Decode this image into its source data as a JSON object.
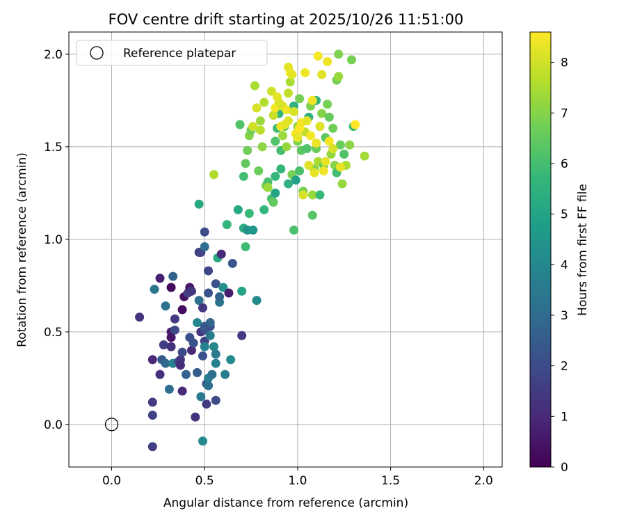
{
  "chart_data": {
    "type": "scatter",
    "title": "FOV centre drift starting at 2025/10/26 11:51:00",
    "xlabel": "Angular distance from reference (arcmin)",
    "ylabel": "Rotation from reference (arcmin)",
    "xlim": [
      -0.23,
      2.1
    ],
    "ylim": [
      -0.23,
      2.12
    ],
    "xticks": [
      0.0,
      0.5,
      1.0,
      1.5,
      2.0
    ],
    "yticks": [
      0.0,
      0.5,
      1.0,
      1.5,
      2.0
    ],
    "grid": true,
    "legend": {
      "location": "top-left",
      "entries": [
        "Reference platepar"
      ]
    },
    "reference_point": {
      "x": 0.0,
      "y": 0.0,
      "label": "Reference platepar",
      "marker": "open-circle"
    },
    "colorbar": {
      "label": "Hours from first FF file",
      "min": 0,
      "max": 8.6,
      "ticks": [
        0,
        1,
        2,
        3,
        4,
        5,
        6,
        7,
        8
      ],
      "colormap": "viridis",
      "colormap_stops": [
        "#440154",
        "#482878",
        "#3e4989",
        "#31688e",
        "#26828e",
        "#1f9e89",
        "#35b779",
        "#6ece58",
        "#b5de2b",
        "#fde725"
      ]
    },
    "points": [
      [
        0.22,
        -0.12,
        1.6
      ],
      [
        0.22,
        0.05,
        1.7
      ],
      [
        0.22,
        0.12,
        1.5
      ],
      [
        0.15,
        0.58,
        1.3
      ],
      [
        0.22,
        0.35,
        1.0
      ],
      [
        0.26,
        0.27,
        1.2
      ],
      [
        0.28,
        0.43,
        1.6
      ],
      [
        0.27,
        0.35,
        2.4
      ],
      [
        0.29,
        0.33,
        2.9
      ],
      [
        0.31,
        0.19,
        3.1
      ],
      [
        0.26,
        0.79,
        0.8
      ],
      [
        0.23,
        0.73,
        3.4
      ],
      [
        0.29,
        0.64,
        3.2
      ],
      [
        0.32,
        0.74,
        0.3
      ],
      [
        0.33,
        0.8,
        2.7
      ],
      [
        0.32,
        0.5,
        0.7
      ],
      [
        0.32,
        0.47,
        0.5
      ],
      [
        0.32,
        0.42,
        1.2
      ],
      [
        0.33,
        0.33,
        3.8
      ],
      [
        0.34,
        0.57,
        1.5
      ],
      [
        0.34,
        0.51,
        1.9
      ],
      [
        0.36,
        0.34,
        2.0
      ],
      [
        0.37,
        0.35,
        1.4
      ],
      [
        0.37,
        0.32,
        1.1
      ],
      [
        0.38,
        0.62,
        0.3
      ],
      [
        0.38,
        0.18,
        1.0
      ],
      [
        0.38,
        0.39,
        1.9
      ],
      [
        0.39,
        0.69,
        0.4
      ],
      [
        0.4,
        0.27,
        2.7
      ],
      [
        0.41,
        0.71,
        1.7
      ],
      [
        0.42,
        0.74,
        0.6
      ],
      [
        0.43,
        0.72,
        1.4
      ],
      [
        0.42,
        0.47,
        2.1
      ],
      [
        0.43,
        0.4,
        1.0
      ],
      [
        0.44,
        0.44,
        2.2
      ],
      [
        0.45,
        0.04,
        1.3
      ],
      [
        0.46,
        0.55,
        4.0
      ],
      [
        0.46,
        0.28,
        2.5
      ],
      [
        0.47,
        0.67,
        3.2
      ],
      [
        0.47,
        1.19,
        5.2
      ],
      [
        0.47,
        0.93,
        1.5
      ],
      [
        0.48,
        0.93,
        1.8
      ],
      [
        0.48,
        0.5,
        1.3
      ],
      [
        0.48,
        0.15,
        3.5
      ],
      [
        0.49,
        0.37,
        2.2
      ],
      [
        0.49,
        0.63,
        1.4
      ],
      [
        0.49,
        -0.09,
        4.1
      ],
      [
        0.5,
        0.51,
        2.1
      ],
      [
        0.5,
        1.04,
        2.0
      ],
      [
        0.5,
        0.96,
        3.0
      ],
      [
        0.5,
        0.45,
        1.7
      ],
      [
        0.5,
        0.53,
        2.4
      ],
      [
        0.5,
        0.42,
        3.8
      ],
      [
        0.51,
        0.22,
        2.4
      ],
      [
        0.51,
        0.11,
        1.5
      ],
      [
        0.52,
        0.83,
        1.8
      ],
      [
        0.52,
        0.25,
        3.7
      ],
      [
        0.52,
        0.71,
        2.2
      ],
      [
        0.52,
        0.21,
        3.1
      ],
      [
        0.53,
        0.53,
        2.1
      ],
      [
        0.53,
        0.55,
        2.8
      ],
      [
        0.53,
        0.48,
        3.6
      ],
      [
        0.54,
        0.27,
        3.2
      ],
      [
        0.55,
        0.42,
        4.1
      ],
      [
        0.56,
        0.76,
        2.2
      ],
      [
        0.56,
        0.38,
        3.5
      ],
      [
        0.56,
        0.33,
        3.8
      ],
      [
        0.56,
        0.13,
        2.0
      ],
      [
        0.57,
        0.9,
        5.2
      ],
      [
        0.58,
        0.66,
        3.3
      ],
      [
        0.58,
        0.69,
        2.7
      ],
      [
        0.59,
        0.92,
        1.0
      ],
      [
        0.6,
        0.74,
        4.3
      ],
      [
        0.61,
        0.27,
        3.6
      ],
      [
        0.62,
        1.08,
        5.6
      ],
      [
        0.63,
        0.71,
        0.7
      ],
      [
        0.64,
        0.35,
        4.1
      ],
      [
        0.65,
        0.87,
        2.3
      ],
      [
        0.7,
        0.48,
        1.5
      ],
      [
        0.7,
        0.72,
        5.0
      ],
      [
        0.72,
        0.96,
        5.9
      ],
      [
        0.78,
        0.67,
        4.1
      ],
      [
        0.68,
        1.16,
        5.2
      ],
      [
        0.71,
        1.06,
        5.3
      ],
      [
        0.73,
        1.05,
        4.3
      ],
      [
        0.74,
        1.14,
        5.8
      ],
      [
        0.76,
        1.05,
        4.5
      ],
      [
        0.69,
        1.62,
        6.2
      ],
      [
        0.71,
        1.34,
        6.0
      ],
      [
        0.72,
        1.41,
        6.5
      ],
      [
        0.73,
        1.48,
        6.7
      ],
      [
        0.74,
        1.56,
        7.0
      ],
      [
        0.75,
        1.59,
        6.7
      ],
      [
        0.77,
        1.83,
        7.5
      ],
      [
        0.78,
        1.71,
        8.1
      ],
      [
        0.79,
        1.37,
        6.6
      ],
      [
        0.8,
        1.64,
        7.3
      ],
      [
        0.81,
        1.5,
        7.1
      ],
      [
        0.82,
        1.16,
        5.7
      ],
      [
        0.83,
        1.29,
        6.8
      ],
      [
        0.84,
        1.31,
        6.1
      ],
      [
        0.84,
        1.28,
        7.3
      ],
      [
        0.86,
        1.22,
        6.1
      ],
      [
        0.87,
        1.2,
        6.5
      ],
      [
        0.88,
        1.34,
        5.6
      ],
      [
        0.88,
        1.25,
        5.0
      ],
      [
        0.88,
        1.53,
        6.2
      ],
      [
        0.89,
        1.6,
        5.9
      ],
      [
        0.9,
        1.73,
        6.4
      ],
      [
        0.9,
        1.68,
        5.6
      ],
      [
        0.91,
        1.48,
        6.0
      ],
      [
        0.91,
        1.38,
        5.7
      ],
      [
        0.92,
        1.56,
        7.3
      ],
      [
        0.93,
        1.61,
        6.4
      ],
      [
        0.94,
        1.5,
        7.2
      ],
      [
        0.95,
        1.3,
        5.5
      ],
      [
        0.95,
        1.79,
        7.8
      ],
      [
        0.96,
        1.85,
        7.5
      ],
      [
        0.97,
        1.35,
        6.8
      ],
      [
        0.98,
        1.05,
        6.1
      ],
      [
        0.98,
        1.72,
        5.5
      ],
      [
        0.99,
        1.32,
        4.9
      ],
      [
        1.0,
        1.61,
        7.1
      ],
      [
        1.0,
        1.53,
        6.9
      ],
      [
        1.01,
        1.37,
        6.1
      ],
      [
        1.01,
        1.76,
        6.8
      ],
      [
        1.02,
        1.48,
        6.4
      ],
      [
        1.03,
        1.26,
        6.8
      ],
      [
        1.04,
        1.58,
        7.8
      ],
      [
        1.05,
        1.49,
        6.2
      ],
      [
        1.06,
        1.66,
        5.5
      ],
      [
        1.07,
        1.72,
        6.9
      ],
      [
        1.08,
        1.24,
        7.3
      ],
      [
        1.08,
        1.13,
        6.3
      ],
      [
        1.09,
        1.38,
        7.0
      ],
      [
        1.1,
        1.75,
        5.6
      ],
      [
        1.1,
        1.49,
        6.6
      ],
      [
        1.11,
        1.42,
        7.5
      ],
      [
        1.12,
        1.61,
        6.0
      ],
      [
        1.12,
        1.24,
        5.8
      ],
      [
        1.13,
        1.68,
        7.0
      ],
      [
        1.14,
        1.4,
        6.6
      ],
      [
        1.15,
        1.55,
        6.4
      ],
      [
        1.16,
        1.73,
        6.8
      ],
      [
        1.17,
        1.66,
        6.5
      ],
      [
        1.18,
        1.46,
        7.2
      ],
      [
        1.19,
        1.6,
        6.7
      ],
      [
        1.2,
        1.4,
        7.0
      ],
      [
        1.21,
        1.86,
        6.8
      ],
      [
        1.21,
        1.36,
        6.0
      ],
      [
        1.22,
        1.88,
        7.3
      ],
      [
        1.23,
        1.51,
        6.6
      ],
      [
        1.24,
        1.3,
        7.2
      ],
      [
        1.25,
        1.46,
        6.2
      ],
      [
        1.26,
        1.4,
        7.5
      ],
      [
        1.28,
        1.51,
        7.1
      ],
      [
        1.29,
        1.97,
        6.8
      ],
      [
        1.3,
        1.61,
        5.9
      ],
      [
        1.36,
        1.45,
        7.4
      ],
      [
        1.22,
        2.0,
        6.9
      ],
      [
        0.55,
        1.35,
        7.6
      ],
      [
        0.76,
        1.61,
        8.0
      ],
      [
        0.8,
        1.59,
        7.7
      ],
      [
        0.82,
        1.74,
        7.6
      ],
      [
        0.86,
        1.8,
        8.0
      ],
      [
        0.87,
        1.67,
        7.9
      ],
      [
        0.88,
        1.71,
        8.5
      ],
      [
        0.89,
        1.77,
        8.3
      ],
      [
        0.9,
        1.74,
        8.2
      ],
      [
        0.91,
        1.61,
        8.4
      ],
      [
        0.92,
        1.72,
        8.1
      ],
      [
        0.93,
        1.62,
        8.3
      ],
      [
        0.94,
        1.7,
        8.4
      ],
      [
        0.95,
        1.64,
        8.2
      ],
      [
        0.96,
        1.9,
        8.5
      ],
      [
        0.97,
        1.89,
        8.3
      ],
      [
        0.98,
        1.69,
        8.1
      ],
      [
        0.99,
        1.57,
        8.5
      ],
      [
        1.0,
        1.55,
        8.3
      ],
      [
        1.01,
        1.6,
        8.6
      ],
      [
        1.02,
        1.63,
        8.5
      ],
      [
        1.03,
        1.24,
        8.1
      ],
      [
        1.04,
        1.9,
        8.4
      ],
      [
        1.05,
        1.64,
        8.3
      ],
      [
        1.06,
        1.4,
        8.2
      ],
      [
        1.07,
        1.56,
        8.5
      ],
      [
        1.08,
        1.75,
        8.4
      ],
      [
        1.09,
        1.36,
        8.3
      ],
      [
        1.1,
        1.52,
        8.4
      ],
      [
        1.11,
        1.99,
        8.5
      ],
      [
        1.12,
        1.61,
        8.2
      ],
      [
        1.13,
        1.89,
        8.2
      ],
      [
        1.14,
        1.37,
        8.4
      ],
      [
        1.15,
        1.42,
        8.3
      ],
      [
        1.16,
        1.96,
        8.4
      ],
      [
        1.17,
        1.53,
        8.5
      ],
      [
        1.19,
        1.49,
        8.1
      ],
      [
        1.23,
        1.39,
        8.3
      ],
      [
        1.31,
        1.62,
        8.6
      ],
      [
        0.95,
        1.93,
        8.3
      ]
    ]
  }
}
